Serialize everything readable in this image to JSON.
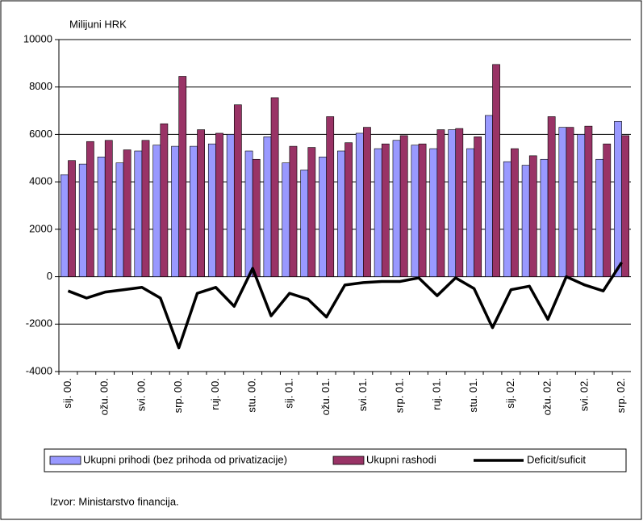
{
  "chart_data": {
    "type": "bar_line",
    "ylabel": "Milijuni HRK",
    "source": "Izvor: Ministarstvo financija.",
    "categories": [
      "sij. 00.",
      null,
      "ožu. 00.",
      null,
      "svi. 00.",
      null,
      "srp. 00.",
      null,
      "ruj. 00.",
      null,
      "stu. 00.",
      null,
      "sij. 01.",
      null,
      "ožu. 01.",
      null,
      "svi. 01.",
      null,
      "srp. 01.",
      null,
      "ruj. 01.",
      null,
      "stu. 01.",
      null,
      "sij. 02.",
      null,
      "ožu. 02.",
      null,
      "svi. 02.",
      null,
      "srp. 02."
    ],
    "series": [
      {
        "name": "Ukupni prihodi (bez prihoda od privatizacije)",
        "type": "bar",
        "color": "#9999ff",
        "values": [
          4300,
          4750,
          5050,
          4800,
          5300,
          5550,
          5500,
          5500,
          5600,
          6000,
          5300,
          5900,
          4800,
          4500,
          5050,
          5300,
          6050,
          5400,
          5750,
          5550,
          5400,
          6200,
          5400,
          6800,
          4850,
          4700,
          4950,
          6300,
          6000,
          4950,
          6550
        ]
      },
      {
        "name": "Ukupni rashodi",
        "type": "bar",
        "color": "#993366",
        "values": [
          4900,
          5700,
          5750,
          5350,
          5750,
          6450,
          8450,
          6200,
          6050,
          7250,
          4950,
          7550,
          5500,
          5450,
          6750,
          5650,
          6300,
          5600,
          5950,
          5600,
          6200,
          6250,
          5900,
          8950,
          5400,
          5100,
          6750,
          6300,
          6350,
          5600,
          5950
        ]
      },
      {
        "name": "Deficit/suficit",
        "type": "line",
        "color": "#000000",
        "values": [
          -600,
          -900,
          -650,
          -550,
          -450,
          -900,
          -3000,
          -700,
          -450,
          -1250,
          350,
          -1650,
          -700,
          -950,
          -1700,
          -350,
          -250,
          -200,
          -200,
          -50,
          -800,
          -50,
          -500,
          -2150,
          -550,
          -400,
          -1800,
          0,
          -350,
          -600,
          600
        ]
      }
    ],
    "ylim": [
      -4000,
      10000
    ],
    "yticks": [
      -4000,
      -2000,
      0,
      2000,
      4000,
      6000,
      8000,
      10000
    ],
    "grid": true
  }
}
